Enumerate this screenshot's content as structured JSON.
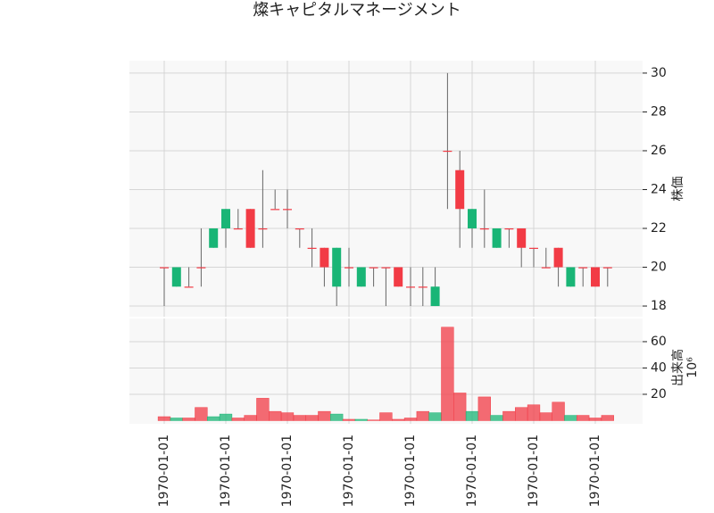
{
  "chart_data": {
    "type": "candlestick",
    "title": "燦キャピタルマネージメント",
    "categories": [
      "1970-01-01",
      null,
      null,
      null,
      null,
      "1970-01-01",
      null,
      null,
      null,
      null,
      "1970-01-01",
      null,
      null,
      null,
      null,
      "1970-01-01",
      null,
      null,
      null,
      null,
      "1970-01-01",
      null,
      null,
      null,
      null,
      "1970-01-01",
      null,
      null,
      null,
      null,
      "1970-01-01",
      null,
      null,
      null,
      null,
      "1970-01-01",
      null
    ],
    "open": [
      20,
      20,
      19,
      20,
      22,
      23,
      22,
      21,
      22,
      23,
      23,
      22,
      21,
      20,
      21,
      20,
      20,
      20,
      20,
      19,
      19,
      19,
      19,
      26,
      23,
      23,
      22,
      22,
      22,
      21,
      21,
      20,
      20,
      20,
      20,
      19,
      20
    ],
    "high": [
      20,
      20,
      20,
      22,
      22,
      23,
      23,
      23,
      25,
      24,
      24,
      22,
      22,
      21,
      21,
      21,
      20,
      20,
      20,
      20,
      20,
      20,
      20,
      30,
      26,
      23,
      24,
      22,
      22,
      22,
      21,
      21,
      21,
      20,
      20,
      20,
      20
    ],
    "low": [
      18,
      19,
      19,
      19,
      21,
      21,
      22,
      21,
      21,
      23,
      22,
      21,
      20,
      19,
      18,
      19,
      19,
      19,
      18,
      19,
      18,
      18,
      18,
      23,
      21,
      21,
      21,
      21,
      21,
      20,
      20,
      20,
      19,
      19,
      19,
      19,
      19
    ],
    "close": [
      20,
      19,
      19,
      20,
      21,
      22,
      22,
      23,
      22,
      23,
      23,
      22,
      21,
      21,
      19,
      20,
      19,
      20,
      20,
      20,
      19,
      19,
      18,
      26,
      25,
      22,
      22,
      21,
      22,
      22,
      21,
      20,
      21,
      19,
      20,
      20,
      20
    ],
    "up_color": "#f23b45",
    "down_color": "#19b576",
    "ylim": [
      17.45,
      30.64
    ],
    "yticks": [
      18,
      20,
      22,
      24,
      26,
      28,
      30
    ],
    "ylabel": "株価",
    "volume": {
      "values": [
        3,
        2,
        2,
        10,
        3,
        5,
        2,
        4,
        17,
        7,
        6,
        4,
        4,
        7,
        5,
        1,
        1,
        0.5,
        6,
        1,
        2,
        7,
        6,
        71,
        21,
        7,
        18,
        4,
        7,
        10,
        12,
        6,
        14,
        4,
        4,
        2,
        4
      ],
      "ylim": [
        -2.4,
        77.6
      ],
      "yticks": [
        20,
        40,
        60
      ],
      "ylabel": "出来高",
      "offset_label": "10⁶"
    },
    "grid": true
  }
}
